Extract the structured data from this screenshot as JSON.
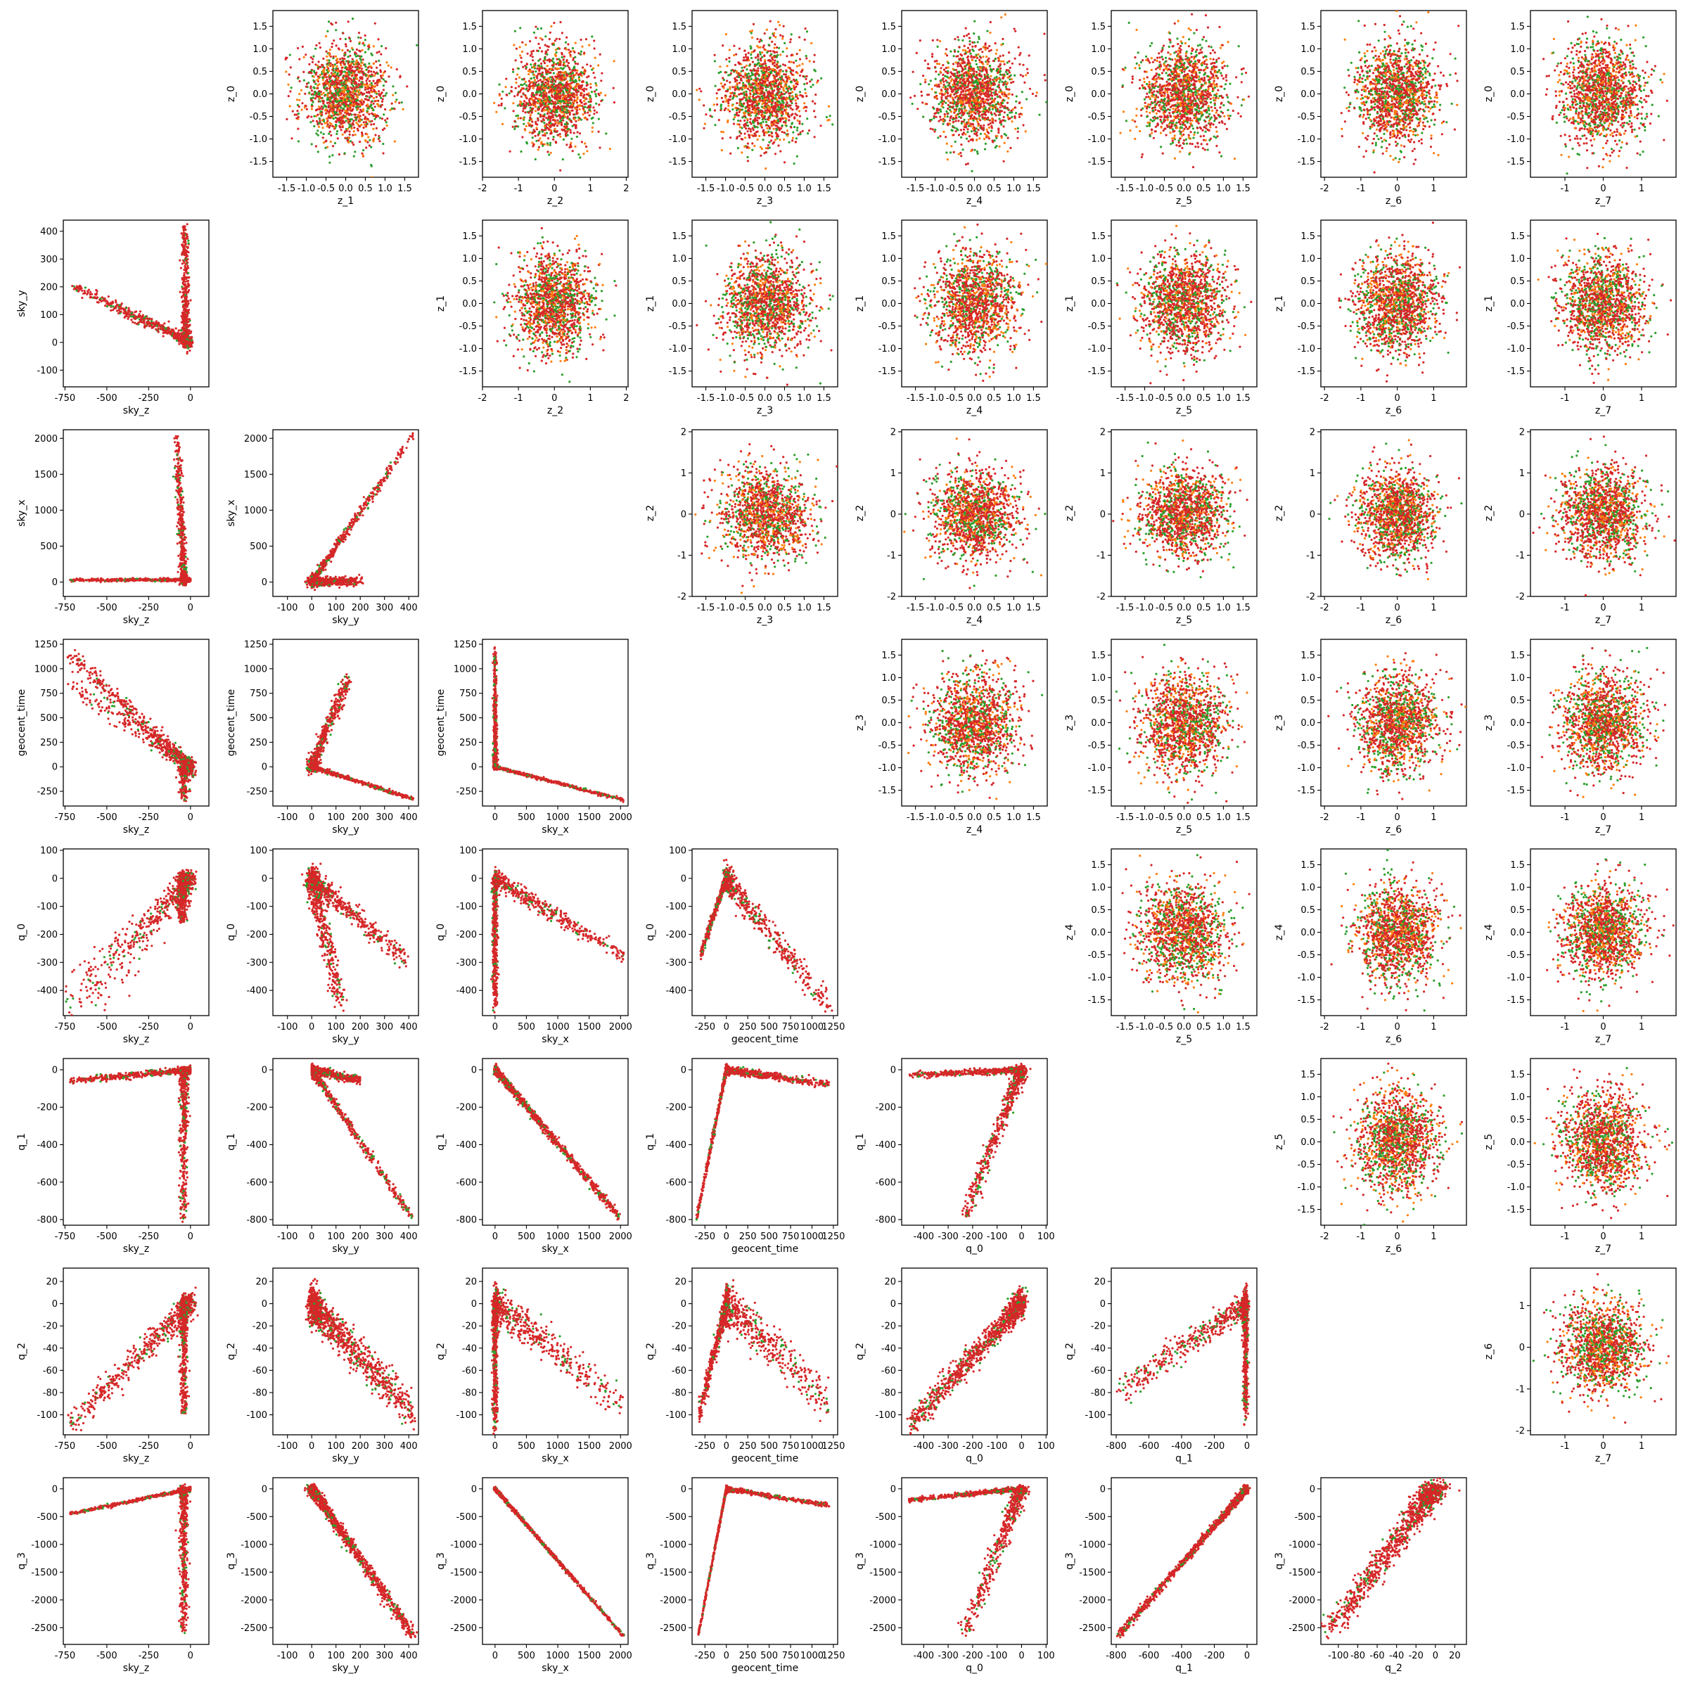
{
  "figure": {
    "type": "scatter-matrix",
    "colors": {
      "posterior": "#d62728",
      "overlay_a": "#2ca02c",
      "overlay_b": "#ff7f0e"
    },
    "marker": "small dots",
    "grid": false,
    "legend": "none"
  },
  "variables": {
    "z_0": {
      "label": "z_0",
      "range": [
        -1.85,
        1.85
      ],
      "ticks": [
        -1.5,
        -1.0,
        -0.5,
        0.0,
        0.5,
        1.0,
        1.5
      ],
      "tick_labels": [
        "-1.5",
        "-1.0",
        "-0.5",
        "0.0",
        "0.5",
        "1.0",
        "1.5"
      ]
    },
    "z_1": {
      "label": "z_1",
      "range": [
        -1.85,
        1.85
      ],
      "ticks": [
        -1.5,
        -1.0,
        -0.5,
        0.0,
        0.5,
        1.0,
        1.5
      ],
      "tick_labels": [
        "-1.5",
        "-1.0",
        "-0.5",
        "0.0",
        "0.5",
        "1.0",
        "1.5"
      ]
    },
    "z_2": {
      "label": "z_2",
      "range": [
        -2.0,
        2.05
      ],
      "ticks": [
        -2,
        -1,
        0,
        1,
        2
      ],
      "tick_labels": [
        "-2",
        "-1",
        "0",
        "1",
        "2"
      ]
    },
    "z_3": {
      "label": "z_3",
      "range": [
        -1.85,
        1.85
      ],
      "ticks": [
        -1.5,
        -1.0,
        -0.5,
        0.0,
        0.5,
        1.0,
        1.5
      ],
      "tick_labels": [
        "-1.5",
        "-1.0",
        "-0.5",
        "0.0",
        "0.5",
        "1.0",
        "1.5"
      ]
    },
    "z_4": {
      "label": "z_4",
      "range": [
        -1.85,
        1.85
      ],
      "ticks": [
        -1.5,
        -1.0,
        -0.5,
        0.0,
        0.5,
        1.0,
        1.5
      ],
      "tick_labels": [
        "-1.5",
        "-1.0",
        "-0.5",
        "0.0",
        "0.5",
        "1.0",
        "1.5"
      ]
    },
    "z_5": {
      "label": "z_5",
      "range": [
        -1.85,
        1.85
      ],
      "ticks": [
        -1.5,
        -1.0,
        -0.5,
        0.0,
        0.5,
        1.0,
        1.5
      ],
      "tick_labels": [
        "-1.5",
        "-1.0",
        "-0.5",
        "0.0",
        "0.5",
        "1.0",
        "1.5"
      ]
    },
    "z_6": {
      "label": "z_6",
      "range": [
        -2.1,
        1.9
      ],
      "ticks": [
        -2,
        -1,
        0,
        1
      ],
      "tick_labels": [
        "-2",
        "-1",
        "0",
        "1"
      ]
    },
    "z_7": {
      "label": "z_7",
      "range": [
        -1.9,
        1.9
      ],
      "ticks": [
        -1,
        0,
        1
      ],
      "tick_labels": [
        "-1",
        "0",
        "1"
      ]
    },
    "sky_z": {
      "label": "sky_z",
      "range": [
        -760,
        110
      ],
      "ticks": [
        -750,
        -500,
        -250,
        0
      ],
      "tick_labels": [
        "-750",
        "-500",
        "-250",
        "0"
      ]
    },
    "sky_y": {
      "label": "sky_y",
      "range": [
        -160,
        440
      ],
      "ticks": [
        -100,
        0,
        100,
        200,
        300,
        400
      ],
      "tick_labels": [
        "-100",
        "0",
        "100",
        "200",
        "300",
        "400"
      ]
    },
    "sky_x": {
      "label": "sky_x",
      "range": [
        -200,
        2120
      ],
      "ticks": [
        0,
        500,
        1000,
        1500,
        2000
      ],
      "tick_labels": [
        "0",
        "500",
        "1000",
        "1500",
        "2000"
      ]
    },
    "geocent_time": {
      "label": "geocent_time",
      "range": [
        -400,
        1300
      ],
      "ticks": [
        -250,
        0,
        250,
        500,
        750,
        1000,
        1250
      ],
      "tick_labels": [
        "-250",
        "0",
        "250",
        "500",
        "750",
        "1000",
        "1250"
      ]
    },
    "q_0": {
      "label": "q_0",
      "range": [
        -490,
        105
      ],
      "ticks": [
        -400,
        -300,
        -200,
        -100,
        0,
        100
      ],
      "tick_labels": [
        "-400",
        "-300",
        "-200",
        "-100",
        "0",
        "100"
      ]
    },
    "q_1": {
      "label": "q_1",
      "range": [
        -830,
        60
      ],
      "ticks": [
        -800,
        -600,
        -400,
        -200,
        0
      ],
      "tick_labels": [
        "-800",
        "-600",
        "-400",
        "-200",
        "0"
      ]
    },
    "q_2": {
      "label": "q_2",
      "range": [
        -118,
        32
      ],
      "ticks": [
        -100,
        -80,
        -60,
        -40,
        -20,
        0,
        20
      ],
      "tick_labels": [
        "-100",
        "-80",
        "-60",
        "-40",
        "-20",
        "0",
        "20"
      ]
    },
    "q_3": {
      "label": "q_3",
      "range": [
        -2800,
        200
      ],
      "ticks": [
        -2500,
        -2000,
        -1500,
        -1000,
        -500,
        0
      ],
      "tick_labels": [
        "-2500",
        "-2000",
        "-1500",
        "-1000",
        "-500",
        "0"
      ]
    }
  },
  "x_order": [
    "sky_z",
    "sky_y",
    "sky_x",
    "geocent_time",
    "q_0",
    "q_1",
    "q_2",
    "z_7"
  ],
  "y_order": [
    "z_0",
    "z_1",
    "z_2",
    "z_3",
    "z_4",
    "z_5",
    "z_6",
    "q_3"
  ],
  "lower_panels": [
    {
      "y": "sky_y",
      "x": "sky_z"
    },
    {
      "y": "sky_x",
      "x": "sky_z"
    },
    {
      "y": "sky_x",
      "x": "sky_y"
    },
    {
      "y": "geocent_time",
      "x": "sky_z"
    },
    {
      "y": "geocent_time",
      "x": "sky_y"
    },
    {
      "y": "geocent_time",
      "x": "sky_x"
    },
    {
      "y": "q_0",
      "x": "sky_z"
    },
    {
      "y": "q_0",
      "x": "sky_y"
    },
    {
      "y": "q_0",
      "x": "sky_x"
    },
    {
      "y": "q_0",
      "x": "geocent_time"
    },
    {
      "y": "q_1",
      "x": "sky_z"
    },
    {
      "y": "q_1",
      "x": "sky_y"
    },
    {
      "y": "q_1",
      "x": "sky_x"
    },
    {
      "y": "q_1",
      "x": "geocent_time"
    },
    {
      "y": "q_1",
      "x": "q_0"
    },
    {
      "y": "q_2",
      "x": "sky_z"
    },
    {
      "y": "q_2",
      "x": "sky_y"
    },
    {
      "y": "q_2",
      "x": "sky_x"
    },
    {
      "y": "q_2",
      "x": "geocent_time"
    },
    {
      "y": "q_2",
      "x": "q_0"
    },
    {
      "y": "q_2",
      "x": "q_1"
    },
    {
      "y": "q_3",
      "x": "sky_z"
    },
    {
      "y": "q_3",
      "x": "sky_y"
    },
    {
      "y": "q_3",
      "x": "sky_x"
    },
    {
      "y": "q_3",
      "x": "geocent_time"
    },
    {
      "y": "q_3",
      "x": "q_0"
    },
    {
      "y": "q_3",
      "x": "q_1"
    },
    {
      "y": "q_3",
      "x": "q_2"
    }
  ],
  "upper_panels": [
    {
      "y": "z_0",
      "x": "z_1"
    },
    {
      "y": "z_0",
      "x": "z_2"
    },
    {
      "y": "z_0",
      "x": "z_3"
    },
    {
      "y": "z_0",
      "x": "z_4"
    },
    {
      "y": "z_0",
      "x": "z_5"
    },
    {
      "y": "z_0",
      "x": "z_6"
    },
    {
      "y": "z_0",
      "x": "z_7"
    },
    {
      "y": "z_1",
      "x": "z_2"
    },
    {
      "y": "z_1",
      "x": "z_3"
    },
    {
      "y": "z_1",
      "x": "z_4"
    },
    {
      "y": "z_1",
      "x": "z_5"
    },
    {
      "y": "z_1",
      "x": "z_6"
    },
    {
      "y": "z_1",
      "x": "z_7"
    },
    {
      "y": "z_2",
      "x": "z_3"
    },
    {
      "y": "z_2",
      "x": "z_4"
    },
    {
      "y": "z_2",
      "x": "z_5"
    },
    {
      "y": "z_2",
      "x": "z_6"
    },
    {
      "y": "z_2",
      "x": "z_7"
    },
    {
      "y": "z_3",
      "x": "z_4"
    },
    {
      "y": "z_3",
      "x": "z_5"
    },
    {
      "y": "z_3",
      "x": "z_6"
    },
    {
      "y": "z_3",
      "x": "z_7"
    },
    {
      "y": "z_4",
      "x": "z_5"
    },
    {
      "y": "z_4",
      "x": "z_6"
    },
    {
      "y": "z_4",
      "x": "z_7"
    },
    {
      "y": "z_5",
      "x": "z_6"
    },
    {
      "y": "z_5",
      "x": "z_7"
    },
    {
      "y": "z_6",
      "x": "z_7"
    }
  ]
}
